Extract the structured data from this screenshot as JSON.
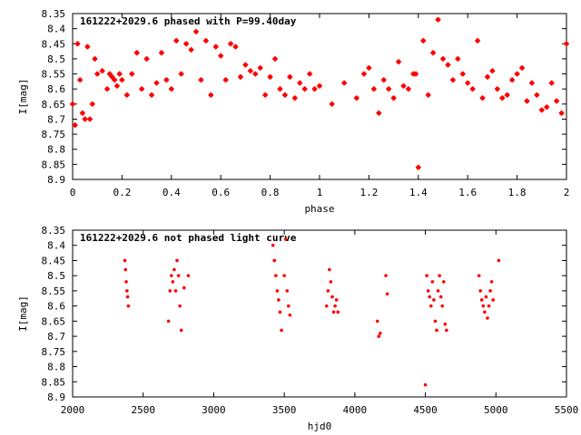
{
  "chart_data": [
    {
      "type": "scatter",
      "title": "161222+2029.6 phased with P=99.40day",
      "xlabel": "phase",
      "ylabel": "I[mag]",
      "xlim": [
        0,
        2
      ],
      "ylim": [
        8.35,
        8.9
      ],
      "y_inverted": true,
      "grid": false,
      "marker_color": "#ff0000",
      "marker": "star",
      "x_ticks": [
        "0",
        "0.2",
        "0.4",
        "0.6",
        "0.8",
        "1",
        "1.2",
        "1.4",
        "1.6",
        "1.8",
        "2"
      ],
      "y_ticks": [
        "8.35",
        "8.4",
        "8.45",
        "8.5",
        "8.55",
        "8.6",
        "8.65",
        "8.7",
        "8.75",
        "8.8",
        "8.85",
        "8.9"
      ],
      "x": [
        0.0,
        0.01,
        0.02,
        0.03,
        0.04,
        0.05,
        0.06,
        0.07,
        0.08,
        0.09,
        0.1,
        0.12,
        0.14,
        0.15,
        0.16,
        0.17,
        0.18,
        0.19,
        0.2,
        0.22,
        0.24,
        0.26,
        0.28,
        0.3,
        0.32,
        0.34,
        0.36,
        0.38,
        0.4,
        0.42,
        0.44,
        0.46,
        0.48,
        0.5,
        0.52,
        0.54,
        0.56,
        0.58,
        0.6,
        0.62,
        0.64,
        0.66,
        0.68,
        0.7,
        0.72,
        0.74,
        0.76,
        0.78,
        0.8,
        0.82,
        0.84,
        0.86,
        0.88,
        0.9,
        0.92,
        0.94,
        0.96,
        0.98,
        1.0,
        1.05,
        1.1,
        1.15,
        1.18,
        1.2,
        1.22,
        1.24,
        1.26,
        1.28,
        1.3,
        1.32,
        1.34,
        1.36,
        1.38,
        1.39,
        1.4,
        1.42,
        1.44,
        1.46,
        1.48,
        1.5,
        1.52,
        1.54,
        1.56,
        1.58,
        1.6,
        1.62,
        1.64,
        1.66,
        1.68,
        1.7,
        1.72,
        1.74,
        1.76,
        1.78,
        1.8,
        1.82,
        1.84,
        1.86,
        1.88,
        1.9,
        1.92,
        1.94,
        1.96,
        1.98,
        2.0
      ],
      "y": [
        8.65,
        8.72,
        8.45,
        8.57,
        8.68,
        8.7,
        8.46,
        8.7,
        8.65,
        8.5,
        8.55,
        8.54,
        8.6,
        8.55,
        8.56,
        8.57,
        8.59,
        8.55,
        8.57,
        8.62,
        8.55,
        8.48,
        8.6,
        8.5,
        8.62,
        8.58,
        8.48,
        8.57,
        8.6,
        8.44,
        8.55,
        8.45,
        8.47,
        8.41,
        8.57,
        8.44,
        8.62,
        8.46,
        8.49,
        8.57,
        8.45,
        8.46,
        8.56,
        8.52,
        8.54,
        8.55,
        8.53,
        8.62,
        8.56,
        8.5,
        8.6,
        8.62,
        8.56,
        8.63,
        8.58,
        8.6,
        8.55,
        8.6,
        8.59,
        8.65,
        8.58,
        8.63,
        8.55,
        8.53,
        8.6,
        8.68,
        8.57,
        8.6,
        8.63,
        8.51,
        8.59,
        8.6,
        8.55,
        8.55,
        8.86,
        8.44,
        8.62,
        8.48,
        8.37,
        8.5,
        8.52,
        8.57,
        8.5,
        8.55,
        8.58,
        8.6,
        8.44,
        8.63,
        8.56,
        8.54,
        8.6,
        8.63,
        8.62,
        8.57,
        8.55,
        8.53,
        8.64,
        8.58,
        8.62,
        8.67,
        8.66,
        8.58,
        8.64,
        8.68,
        8.45
      ]
    },
    {
      "type": "scatter",
      "title": "161222+2029.6 not phased light curve",
      "xlabel": "hjd0",
      "ylabel": "I[mag]",
      "xlim": [
        2000,
        5500
      ],
      "ylim": [
        8.35,
        8.9
      ],
      "y_inverted": true,
      "grid": false,
      "marker_color": "#ff0000",
      "marker": "dot",
      "x_ticks": [
        "2000",
        "2500",
        "3000",
        "3500",
        "4000",
        "4500",
        "5000",
        "5500"
      ],
      "y_ticks": [
        "8.35",
        "8.4",
        "8.45",
        "8.5",
        "8.55",
        "8.6",
        "8.65",
        "8.7",
        "8.75",
        "8.8",
        "8.85",
        "8.9"
      ],
      "x": [
        2370,
        2375,
        2380,
        2385,
        2390,
        2395,
        2680,
        2690,
        2700,
        2710,
        2720,
        2730,
        2740,
        2750,
        2760,
        2770,
        2790,
        2820,
        3420,
        3430,
        3440,
        3450,
        3460,
        3470,
        3480,
        3500,
        3510,
        3520,
        3530,
        3540,
        3800,
        3810,
        3820,
        3830,
        3840,
        3850,
        3860,
        3870,
        3880,
        4160,
        4170,
        4180,
        4220,
        4230,
        4500,
        4510,
        4520,
        4530,
        4540,
        4550,
        4560,
        4570,
        4580,
        4590,
        4600,
        4610,
        4620,
        4630,
        4640,
        4650,
        4880,
        4890,
        4900,
        4910,
        4920,
        4930,
        4940,
        4950,
        4960,
        4970,
        4980,
        5020
      ],
      "y": [
        8.45,
        8.48,
        8.52,
        8.55,
        8.57,
        8.6,
        8.65,
        8.55,
        8.5,
        8.52,
        8.48,
        8.55,
        8.45,
        8.5,
        8.6,
        8.68,
        8.54,
        8.5,
        8.4,
        8.45,
        8.5,
        8.55,
        8.58,
        8.62,
        8.68,
        8.5,
        8.38,
        8.55,
        8.6,
        8.63,
        8.6,
        8.55,
        8.48,
        8.52,
        8.57,
        8.62,
        8.6,
        8.58,
        8.62,
        8.65,
        8.7,
        8.69,
        8.5,
        8.56,
        8.86,
        8.5,
        8.55,
        8.57,
        8.6,
        8.52,
        8.58,
        8.65,
        8.68,
        8.55,
        8.5,
        8.57,
        8.6,
        8.52,
        8.66,
        8.68,
        8.5,
        8.55,
        8.58,
        8.6,
        8.62,
        8.57,
        8.64,
        8.6,
        8.55,
        8.52,
        8.58,
        8.45
      ]
    }
  ]
}
